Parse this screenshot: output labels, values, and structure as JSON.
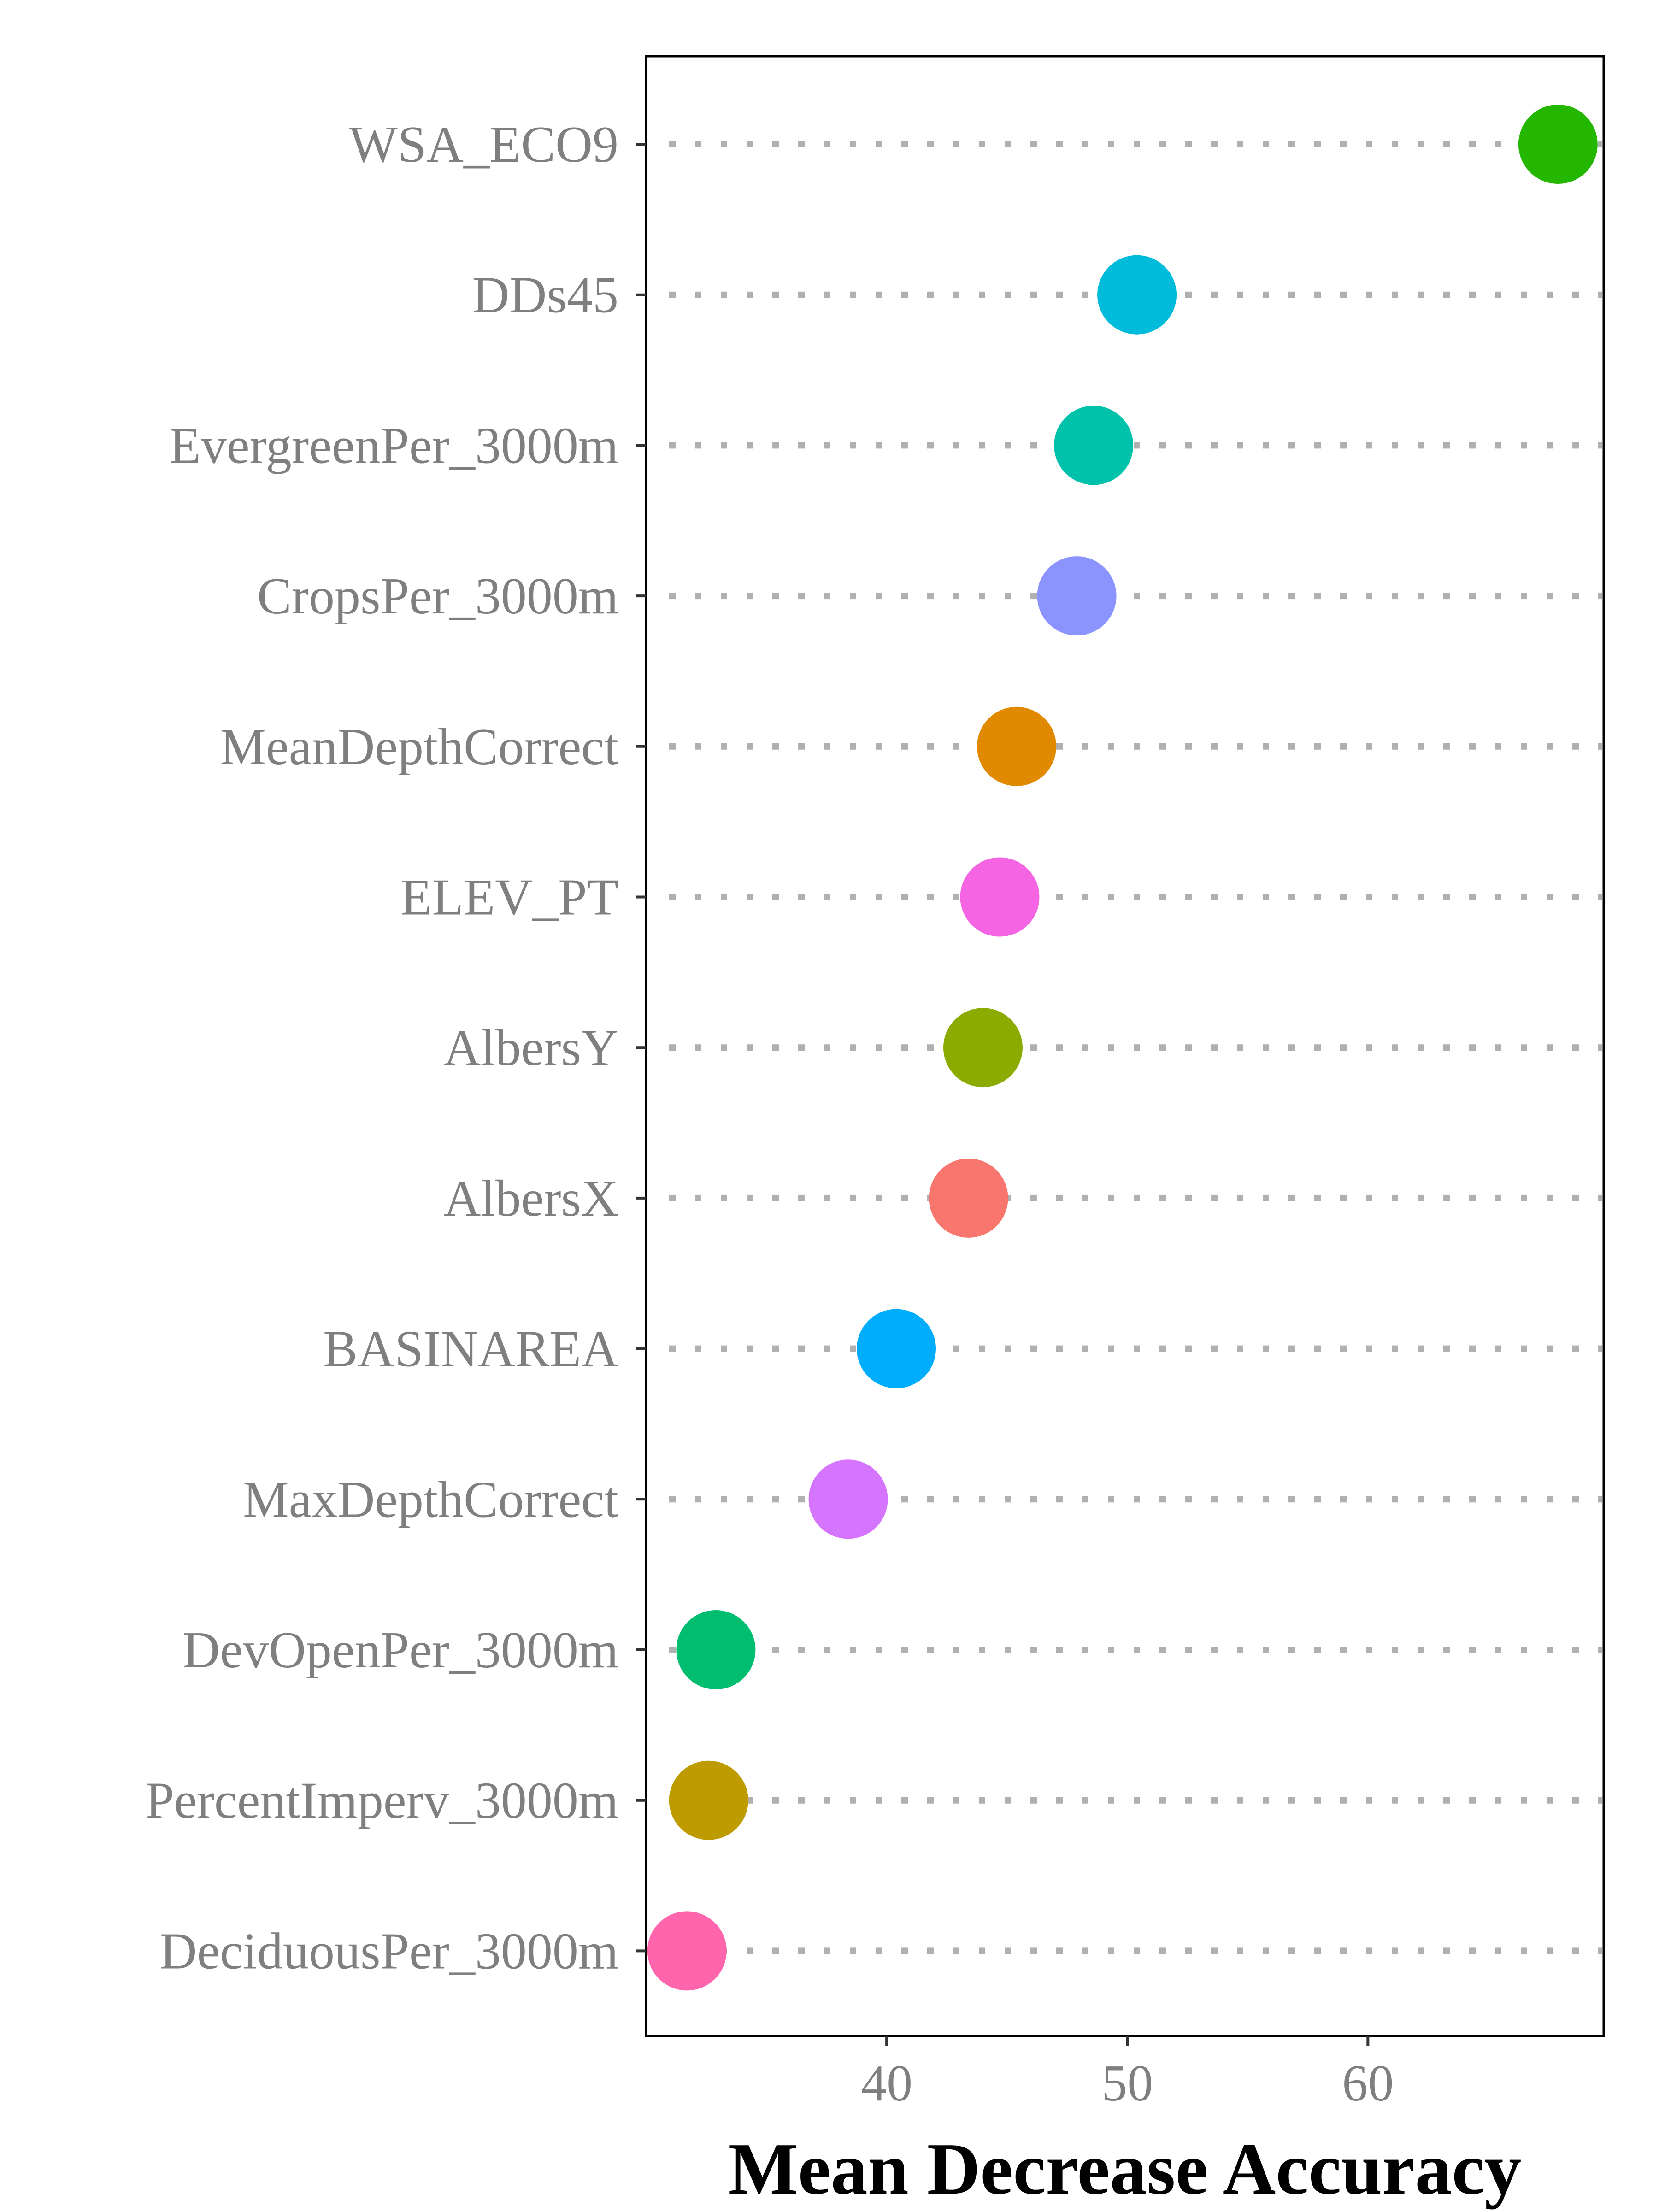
{
  "chart_data": {
    "type": "scatter",
    "xlabel": "Mean Decrease Accuracy",
    "ylabel": "",
    "xlim": [
      30,
      69.8
    ],
    "xticks": [
      40,
      50,
      60
    ],
    "grid": false,
    "legend": "none",
    "points": [
      {
        "label": "WSA_ECO9",
        "value": 67.9,
        "color": "#24B700"
      },
      {
        "label": "DDs45",
        "value": 50.4,
        "color": "#00BBDA"
      },
      {
        "label": "EvergreenPer_3000m",
        "value": 48.6,
        "color": "#00C1AA"
      },
      {
        "label": "CropsPer_3000m",
        "value": 47.9,
        "color": "#8B93FF"
      },
      {
        "label": "MeanDepthCorrect",
        "value": 45.4,
        "color": "#E18A00"
      },
      {
        "label": "ELEV_PT",
        "value": 44.7,
        "color": "#F564E3"
      },
      {
        "label": "AlbersY",
        "value": 44.0,
        "color": "#8CAB00"
      },
      {
        "label": "AlbersX",
        "value": 43.4,
        "color": "#F8766D"
      },
      {
        "label": "BASINAREA",
        "value": 40.4,
        "color": "#00ACFC"
      },
      {
        "label": "MaxDepthCorrect",
        "value": 38.4,
        "color": "#D575FE"
      },
      {
        "label": "DevOpenPer_3000m",
        "value": 32.9,
        "color": "#00BE70"
      },
      {
        "label": "PercentImperv_3000m",
        "value": 32.6,
        "color": "#BE9C00"
      },
      {
        "label": "DeciduousPer_3000m",
        "value": 31.7,
        "color": "#FF65AC"
      }
    ]
  }
}
